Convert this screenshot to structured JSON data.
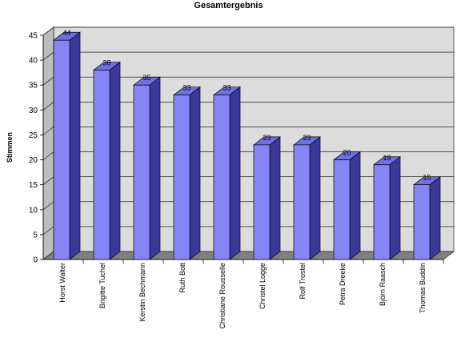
{
  "chart_data": {
    "type": "bar",
    "title": "Gesamtergebnis",
    "xlabel": "",
    "ylabel": "Stimmen",
    "ylim": [
      0,
      45
    ],
    "yticks": [
      0,
      5,
      10,
      15,
      20,
      25,
      30,
      35,
      40,
      45
    ],
    "grid": true,
    "legend": "none",
    "style": "3d-bar",
    "categories": [
      "Horst Walter",
      "Brigitte Tuchel",
      "Kerstin Bechmann",
      "Ruth Bott",
      "Christiane Rousselle",
      "Christel Logge",
      "Rolf Trostel",
      "Petra Dreeke",
      "Björn Raasch",
      "Thomas Buddin"
    ],
    "values": [
      44,
      38,
      35,
      33,
      33,
      23,
      23,
      20,
      19,
      15
    ],
    "colors": {
      "bar_front": "#8585f5",
      "bar_top": "#7070e6",
      "bar_side": "#3a3a9a",
      "wall": "#dcdcdc",
      "floor": "#808080",
      "grid": "#000000"
    }
  }
}
